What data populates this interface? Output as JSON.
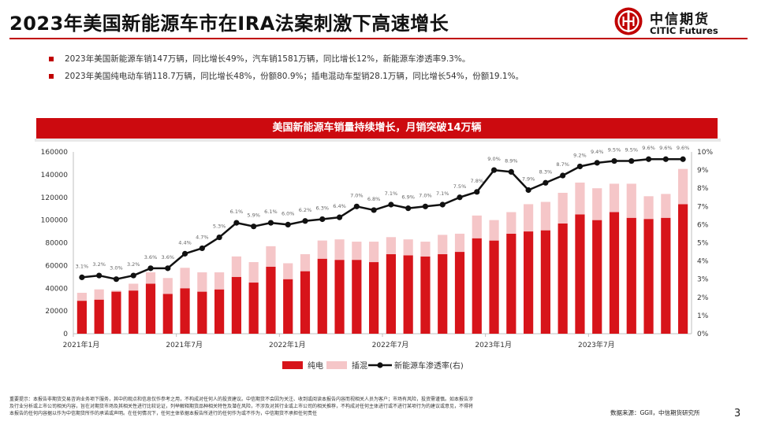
{
  "header": {
    "title": "2023年美国新能源车市在IRA法案刺激下高速增长",
    "logo_cn": "中信期货",
    "logo_en": "CITIC Futures"
  },
  "bullets": [
    "2023年美国新能源车销147万辆，同比增长49%，汽车销1581万辆，同比增长12%，新能源车渗透率9.3%。",
    "2023年美国纯电动车销118.7万辆，同比增长48%，份额80.9%；插电混动车型销28.1万辆，同比增长54%，份额19.1%。"
  ],
  "colors": {
    "accent": "#c00000",
    "bev": "#d7141a",
    "phev": "#f5c6c8",
    "line": "#111111"
  },
  "chart_data": {
    "type": "bar",
    "title": "美国新能源车销量持续增长，月销突破14万辆",
    "stacked": true,
    "categories": [
      "2021-01",
      "2021-02",
      "2021-03",
      "2021-04",
      "2021-05",
      "2021-06",
      "2021-07",
      "2021-08",
      "2021-09",
      "2021-10",
      "2021-11",
      "2021-12",
      "2022-01",
      "2022-02",
      "2022-03",
      "2022-04",
      "2022-05",
      "2022-06",
      "2022-07",
      "2022-08",
      "2022-09",
      "2022-10",
      "2022-11",
      "2022-12",
      "2023-01",
      "2023-02",
      "2023-03",
      "2023-04",
      "2023-05",
      "2023-06",
      "2023-07",
      "2023-08",
      "2023-09",
      "2023-10",
      "2023-11",
      "2023-12"
    ],
    "x_tick_labels": [
      {
        "index": 0,
        "label": "2021年1月"
      },
      {
        "index": 6,
        "label": "2021年7月"
      },
      {
        "index": 12,
        "label": "2022年1月"
      },
      {
        "index": 18,
        "label": "2022年7月"
      },
      {
        "index": 24,
        "label": "2023年1月"
      },
      {
        "index": 30,
        "label": "2023年7月"
      }
    ],
    "series": [
      {
        "name": "纯电",
        "type": "bar",
        "axis": "left",
        "values": [
          29000,
          30000,
          37000,
          38000,
          44000,
          35000,
          40000,
          37000,
          39000,
          50000,
          45000,
          59000,
          48000,
          55000,
          66000,
          65000,
          65000,
          63000,
          70000,
          69000,
          68000,
          70000,
          72000,
          84000,
          82000,
          88000,
          90000,
          91000,
          97000,
          105000,
          100000,
          107000,
          102000,
          101000,
          102000,
          114000
        ]
      },
      {
        "name": "插混",
        "type": "bar",
        "axis": "left",
        "values": [
          7000,
          9000,
          1000,
          6000,
          10000,
          14000,
          18000,
          17000,
          15000,
          18000,
          18000,
          18000,
          14000,
          15000,
          16000,
          18000,
          16000,
          18000,
          15000,
          14000,
          13000,
          17000,
          16000,
          20000,
          18000,
          19000,
          24000,
          25000,
          27000,
          28000,
          28000,
          25000,
          30000,
          20000,
          21000,
          31000
        ]
      },
      {
        "name": "新能源车渗透率(右)",
        "type": "line",
        "axis": "right",
        "values": [
          3.1,
          3.2,
          3.0,
          3.2,
          3.6,
          3.6,
          4.4,
          4.7,
          5.3,
          6.1,
          5.9,
          6.1,
          6.0,
          6.2,
          6.3,
          6.4,
          7.0,
          6.8,
          7.1,
          6.9,
          7.0,
          7.1,
          7.5,
          7.8,
          9.0,
          8.9,
          7.9,
          8.3,
          8.7,
          9.2,
          9.4,
          9.5,
          9.5,
          9.6,
          9.6,
          9.6
        ],
        "labels": [
          "3.1%",
          "3.2%",
          "3.0%",
          "3.2%",
          "3.6%",
          "3.6%",
          "4.4%",
          "4.7%",
          "5.3%",
          "6.1%",
          "5.9%",
          "6.1%",
          "6.0%",
          "6.2%",
          "6.3%",
          "6.4%",
          "7.0%",
          "6.8%",
          "7.1%",
          "6.9%",
          "7.0%",
          "7.1%",
          "7.5%",
          "7.8%",
          "9.0%",
          "8.9%",
          "7.9%",
          "8.3%",
          "8.7%",
          "9.2%",
          "9.4%",
          "9.5%",
          "9.5%",
          "9.6%",
          "9.6%",
          "9.6%"
        ]
      }
    ],
    "y_left": {
      "min": 0,
      "max": 160000,
      "step": 20000,
      "ticks": [
        "0",
        "20000",
        "40000",
        "60000",
        "80000",
        "100000",
        "120000",
        "140000",
        "160000"
      ]
    },
    "y_right": {
      "min": 0,
      "max": 10,
      "step": 1,
      "ticks": [
        "0%",
        "1%",
        "2%",
        "3%",
        "4%",
        "5%",
        "6%",
        "7%",
        "8%",
        "9%",
        "10%"
      ]
    },
    "grid": false,
    "legend_position": "bottom"
  },
  "footer": {
    "disclaimer": "重要提示：本报告非期货交易咨询业务项下服务，其中的观点和信息仅作参考之用，不构成对任何人的投资建议。中信期货不会因为关注、收到或阅读本报告内容而视相关人员为客户；市场有风险，投资需谨慎。如本报告涉及行业分析或上市公司相关内容，旨在对期货市场及其相关性进行比较论证，列举解释期货品种相关特性及潜在风险，不涉及对其行业或上市公司的相关推荐，不构成对任何主体进行或不进行某项行为的建议或意见，不得将本报告的任何内容据以作为中信期货所作的承诺或声明。在任何情况下，任何主体依据本报告所进行的任何作为或不作为，中信期货不承担任何责任",
    "source": "数据来源：GGII，中信期货研究所",
    "page": "3"
  }
}
